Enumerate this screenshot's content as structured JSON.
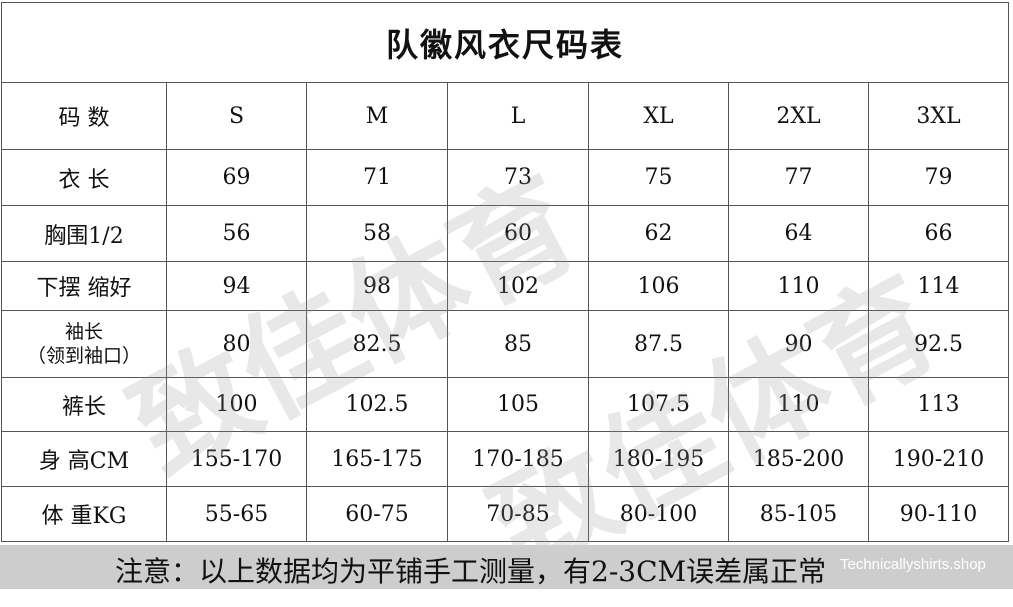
{
  "title": "队徽风衣尺码表",
  "header": {
    "label": "码 数",
    "sizes": [
      "S",
      "M",
      "L",
      "XL",
      "2XL",
      "3XL"
    ]
  },
  "rows": [
    {
      "label": "衣 长",
      "values": [
        "69",
        "71",
        "73",
        "75",
        "77",
        "79"
      ]
    },
    {
      "label": "胸围1/2",
      "values": [
        "56",
        "58",
        "60",
        "62",
        "64",
        "66"
      ]
    },
    {
      "label": "下摆 缩好",
      "values": [
        "94",
        "98",
        "102",
        "106",
        "110",
        "114"
      ]
    },
    {
      "label": "袖长",
      "sublabel": "（领到袖口）",
      "values": [
        "80",
        "82.5",
        "85",
        "87.5",
        "90",
        "92.5"
      ]
    },
    {
      "label": "裤长",
      "values": [
        "100",
        "102.5",
        "105",
        "107.5",
        "110",
        "113"
      ]
    },
    {
      "label": "身 高CM",
      "values": [
        "155-170",
        "165-175",
        "170-185",
        "180-195",
        "185-200",
        "190-210"
      ]
    },
    {
      "label": "体 重KG",
      "values": [
        "55-65",
        "60-75",
        "70-85",
        "80-100",
        "85-105",
        "90-110"
      ]
    }
  ],
  "note": "注意：以上数据均为平铺手工测量，有2-3CM误差属正常",
  "watermark": "致佳体育",
  "shop_watermark": "Technicallyshirts.shop",
  "colors": {
    "note_background": "#cdcdcd",
    "border": "#555555"
  }
}
